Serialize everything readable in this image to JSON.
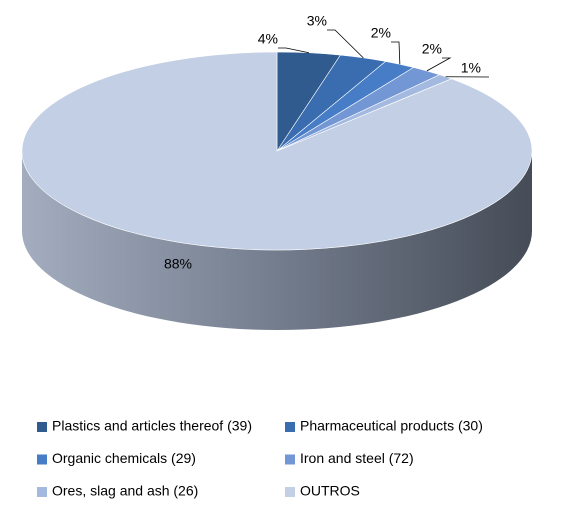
{
  "chart_data": {
    "type": "pie3d",
    "categories": [
      "Plastics and articles thereof (39)",
      "Pharmaceutical products (30)",
      "Organic chemicals (29)",
      "Iron and steel (72)",
      "Ores, slag and ash (26)",
      "OUTROS"
    ],
    "values": [
      4,
      3,
      2,
      2,
      1,
      88
    ],
    "value_labels": [
      "4%",
      "3%",
      "2%",
      "2%",
      "1%",
      "88%"
    ],
    "colors": [
      "#2f5b8f",
      "#3a6cb0",
      "#467dc6",
      "#7396d4",
      "#a3b9e0",
      "#c3cfe4"
    ],
    "legend": "bottom"
  }
}
